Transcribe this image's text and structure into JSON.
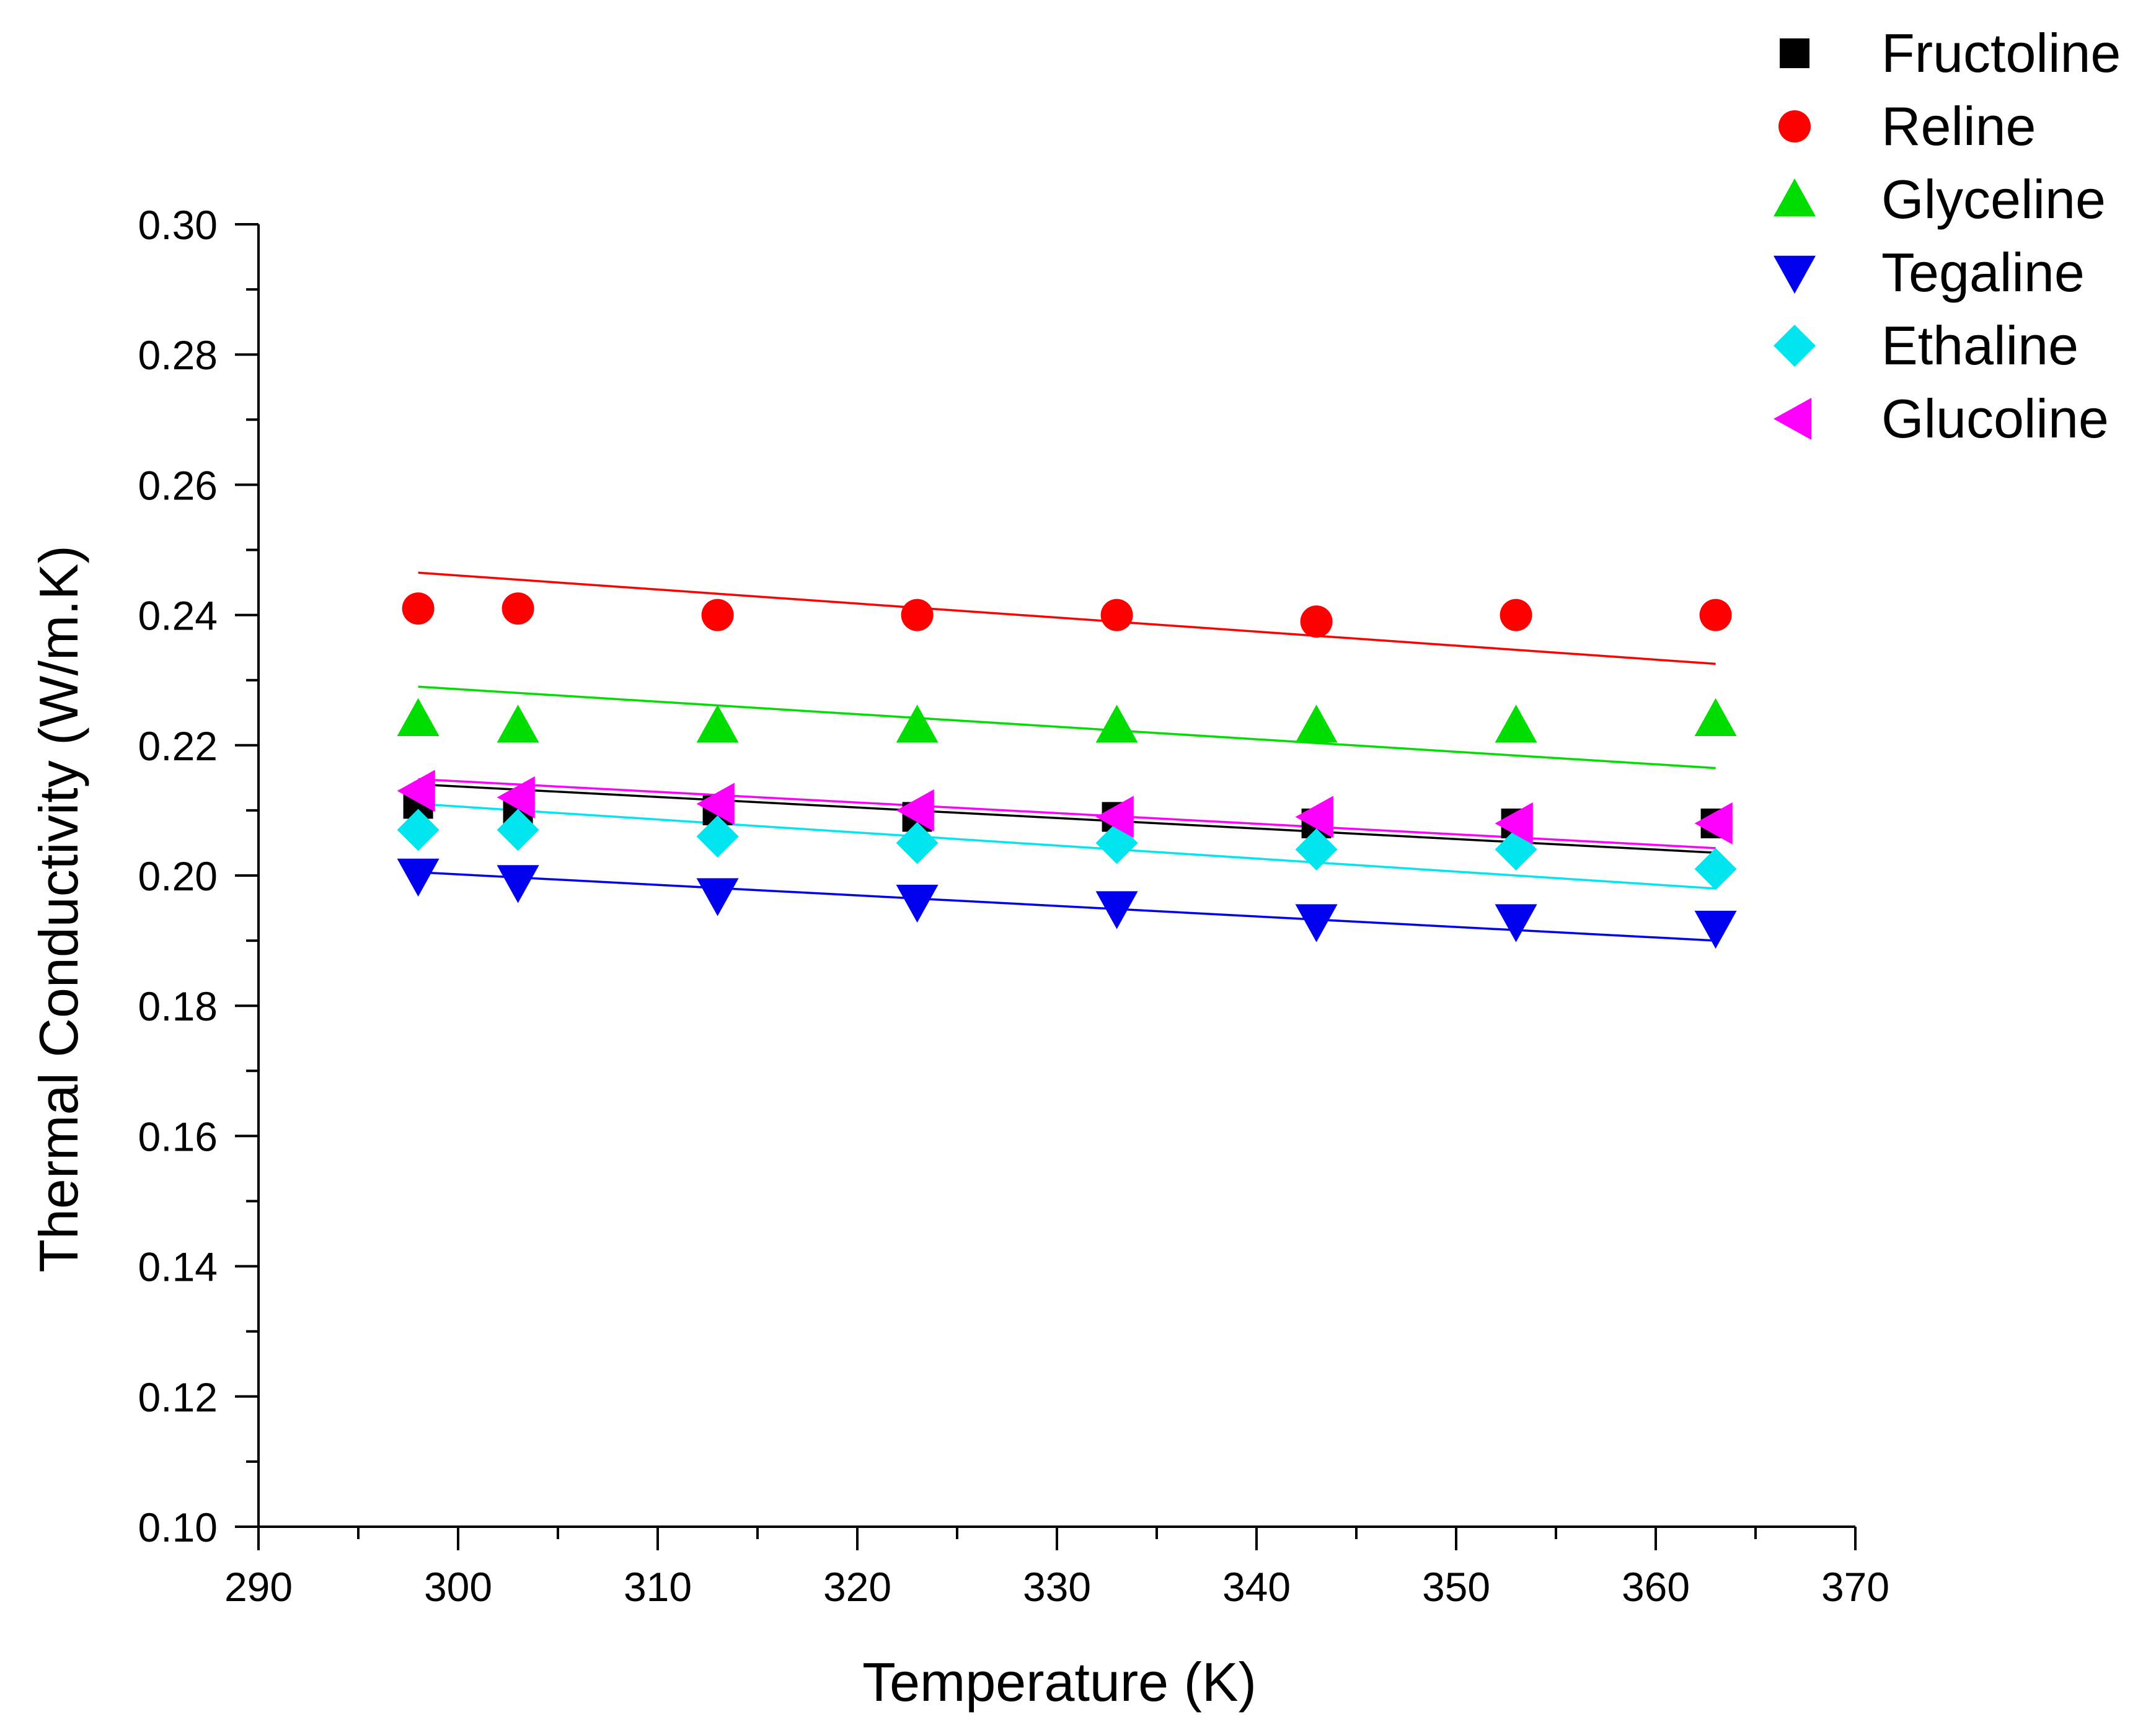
{
  "chart_data": {
    "type": "scatter",
    "title": "",
    "xlabel": "Temperature (K)",
    "ylabel": "Thermal Conductivity (W/m.K)",
    "xlim": [
      290,
      370
    ],
    "ylim": [
      0.1,
      0.3
    ],
    "x_ticks": [
      "290",
      "300",
      "310",
      "320",
      "330",
      "340",
      "350",
      "360",
      "370"
    ],
    "y_ticks": [
      "0.10",
      "0.12",
      "0.14",
      "0.16",
      "0.18",
      "0.20",
      "0.22",
      "0.24",
      "0.26",
      "0.28",
      "0.30"
    ],
    "x_tick_values": [
      290,
      300,
      310,
      320,
      330,
      340,
      350,
      360,
      370
    ],
    "y_tick_values": [
      0.1,
      0.12,
      0.14,
      0.16,
      0.18,
      0.2,
      0.22,
      0.24,
      0.26,
      0.28,
      0.3
    ],
    "grid": false,
    "legend_position": "top-right",
    "x": [
      298,
      303,
      313,
      323,
      333,
      343,
      353,
      363
    ],
    "series": [
      {
        "name": "Fructoline",
        "marker": "square",
        "color": "#000000",
        "values": [
          0.211,
          0.21,
          0.21,
          0.209,
          0.209,
          0.208,
          0.208,
          0.208
        ],
        "fit": [
          0.214,
          0.2035
        ]
      },
      {
        "name": "Reline",
        "marker": "circle",
        "color": "#ff0000",
        "values": [
          0.241,
          0.241,
          0.24,
          0.24,
          0.24,
          0.239,
          0.24,
          0.24
        ],
        "fit": [
          0.2465,
          0.2325
        ]
      },
      {
        "name": "Glyceline",
        "marker": "triangle-up",
        "color": "#00dd00",
        "values": [
          0.224,
          0.223,
          0.223,
          0.223,
          0.223,
          0.223,
          0.223,
          0.224
        ],
        "fit": [
          0.229,
          0.2165
        ]
      },
      {
        "name": "Tegaline",
        "marker": "triangle-down",
        "color": "#0000ee",
        "values": [
          0.2,
          0.199,
          0.197,
          0.196,
          0.195,
          0.193,
          0.193,
          0.192
        ],
        "fit": [
          0.2005,
          0.19
        ]
      },
      {
        "name": "Ethaline",
        "marker": "diamond",
        "color": "#00e5ee",
        "values": [
          0.207,
          0.207,
          0.206,
          0.205,
          0.205,
          0.204,
          0.204,
          0.201
        ],
        "fit": [
          0.211,
          0.198
        ]
      },
      {
        "name": "Glucoline",
        "marker": "triangle-left",
        "color": "#ff00ff",
        "values": [
          0.213,
          0.212,
          0.211,
          0.21,
          0.209,
          0.209,
          0.208,
          0.208
        ],
        "fit": [
          0.2148,
          0.2042
        ]
      }
    ]
  }
}
